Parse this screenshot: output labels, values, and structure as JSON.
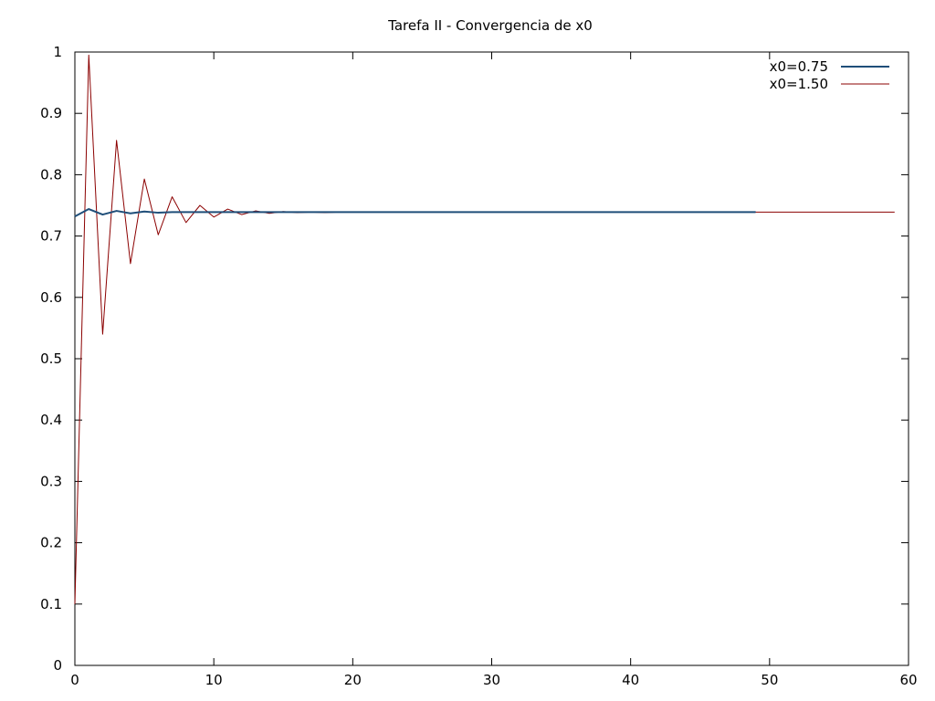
{
  "chart_data": {
    "type": "line",
    "title": "Tarefa II - Convergencia de x0",
    "xlabel": "",
    "ylabel": "",
    "xlim": [
      0,
      60
    ],
    "ylim": [
      0,
      1
    ],
    "xticks": [
      0,
      10,
      20,
      30,
      40,
      50,
      60
    ],
    "yticks": [
      0,
      0.1,
      0.2,
      0.3,
      0.4,
      0.5,
      0.6,
      0.7,
      0.8,
      0.9,
      1
    ],
    "xtick_labels": [
      "0",
      "10",
      "20",
      "30",
      "40",
      "50",
      "60"
    ],
    "ytick_labels": [
      "0",
      "0.1",
      "0.2",
      "0.3",
      "0.4",
      "0.5",
      "0.6",
      "0.7",
      "0.8",
      "0.9",
      "1"
    ],
    "grid": false,
    "legend_position": "top-right",
    "series": [
      {
        "name": "x0=0.75",
        "color": "#1f4e79",
        "x": [
          0,
          1,
          2,
          3,
          4,
          5,
          6,
          7,
          8,
          9,
          10,
          11,
          12,
          13,
          14,
          15,
          16,
          17,
          18,
          19,
          20,
          21,
          22,
          23,
          24,
          25,
          26,
          27,
          28,
          29,
          30,
          31,
          32,
          33,
          34,
          35,
          36,
          37,
          38,
          39,
          40,
          41,
          42,
          43,
          44,
          45,
          46,
          47,
          48,
          49
        ],
        "values": [
          0.732,
          0.744,
          0.735,
          0.741,
          0.737,
          0.74,
          0.738,
          0.739,
          0.739,
          0.739,
          0.739,
          0.739,
          0.739,
          0.739,
          0.739,
          0.739,
          0.739,
          0.739,
          0.739,
          0.739,
          0.739,
          0.739,
          0.739,
          0.739,
          0.739,
          0.739,
          0.739,
          0.739,
          0.739,
          0.739,
          0.739,
          0.739,
          0.739,
          0.739,
          0.739,
          0.739,
          0.739,
          0.739,
          0.739,
          0.739,
          0.739,
          0.739,
          0.739,
          0.739,
          0.739,
          0.739,
          0.739,
          0.739,
          0.739,
          0.739
        ]
      },
      {
        "name": "x0=1.50",
        "color": "#8b0000",
        "x": [
          0,
          1,
          2,
          3,
          4,
          5,
          6,
          7,
          8,
          9,
          10,
          11,
          12,
          13,
          14,
          15,
          16,
          17,
          18,
          19,
          20,
          21,
          22,
          23,
          24,
          25,
          26,
          27,
          28,
          29,
          30,
          31,
          32,
          33,
          34,
          35,
          36,
          37,
          38,
          39,
          40,
          41,
          42,
          43,
          44,
          45,
          46,
          47,
          48,
          49,
          50,
          51,
          52,
          53,
          54,
          55,
          56,
          57,
          58,
          59
        ],
        "values": [
          0.1,
          0.995,
          0.54,
          0.856,
          0.655,
          0.793,
          0.702,
          0.764,
          0.722,
          0.75,
          0.731,
          0.744,
          0.735,
          0.741,
          0.737,
          0.74,
          0.738,
          0.739,
          0.738,
          0.739,
          0.739,
          0.739,
          0.739,
          0.739,
          0.739,
          0.739,
          0.739,
          0.739,
          0.739,
          0.739,
          0.739,
          0.739,
          0.739,
          0.739,
          0.739,
          0.739,
          0.739,
          0.739,
          0.739,
          0.739,
          0.739,
          0.739,
          0.739,
          0.739,
          0.739,
          0.739,
          0.739,
          0.739,
          0.739,
          0.739,
          0.739,
          0.739,
          0.739,
          0.739,
          0.739,
          0.739,
          0.739,
          0.739,
          0.739,
          0.739
        ]
      }
    ]
  }
}
